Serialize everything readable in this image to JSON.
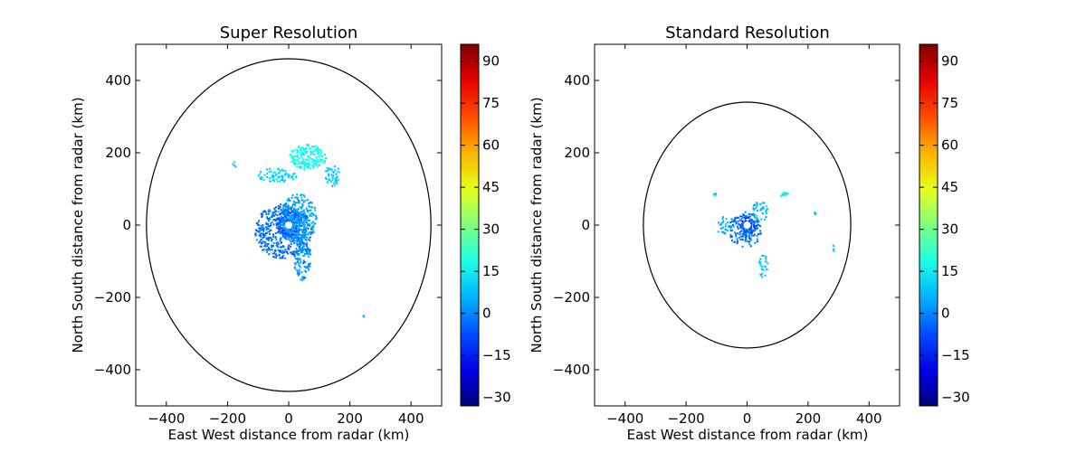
{
  "chart_data": [
    {
      "type": "heatmap",
      "title": "Super Resolution",
      "xlabel": "East West distance from radar (km)",
      "ylabel": "North South distance from radar (km)",
      "xlim": [
        -500,
        500
      ],
      "ylim": [
        -500,
        500
      ],
      "xticks": [
        -400,
        -200,
        0,
        200,
        400
      ],
      "yticks": [
        -400,
        -200,
        0,
        200,
        400
      ],
      "xtick_labels": [
        "−400",
        "−200",
        "0",
        "200",
        "400"
      ],
      "ytick_labels": [
        "−400",
        "−200",
        "0",
        "200",
        "400"
      ],
      "range_ring": {
        "center": [
          0,
          0
        ],
        "radius_x": 465,
        "radius_y": 460
      },
      "colorbar": {
        "min": -33,
        "max": 96,
        "ticks": [
          -30,
          -15,
          0,
          15,
          30,
          45,
          60,
          75,
          90
        ],
        "tick_labels": [
          "−30",
          "−15",
          "0",
          "15",
          "30",
          "45",
          "60",
          "75",
          "90"
        ],
        "colormap": "jet"
      },
      "echo_regions": [
        {
          "x": 0,
          "y": 10,
          "rx": 40,
          "ry": 40,
          "value": -10,
          "density": 0.85
        },
        {
          "x": -20,
          "y": -15,
          "rx": 95,
          "ry": 75,
          "value": -3,
          "density": 0.5
        },
        {
          "x": 30,
          "y": 20,
          "rx": 60,
          "ry": 70,
          "value": 4,
          "density": 0.45
        },
        {
          "x": 40,
          "y": -90,
          "rx": 30,
          "ry": 60,
          "value": 2,
          "density": 0.45
        },
        {
          "x": 60,
          "y": 190,
          "rx": 60,
          "ry": 35,
          "value": 17,
          "density": 0.6
        },
        {
          "x": -40,
          "y": 140,
          "rx": 65,
          "ry": 20,
          "value": 10,
          "density": 0.4
        },
        {
          "x": 140,
          "y": 140,
          "rx": 25,
          "ry": 30,
          "value": 9,
          "density": 0.45
        },
        {
          "x": -180,
          "y": 170,
          "rx": 6,
          "ry": 10,
          "value": 8,
          "density": 0.5
        },
        {
          "x": 240,
          "y": -250,
          "rx": 3,
          "ry": 3,
          "value": 8,
          "density": 0.6
        }
      ]
    },
    {
      "type": "heatmap",
      "title": "Standard Resolution",
      "xlabel": "East West distance from radar (km)",
      "ylabel": "North South distance from radar (km)",
      "xlim": [
        -500,
        500
      ],
      "ylim": [
        -500,
        500
      ],
      "xticks": [
        -400,
        -200,
        0,
        200,
        400
      ],
      "yticks": [
        -400,
        -200,
        0,
        200,
        400
      ],
      "xtick_labels": [
        "−400",
        "−200",
        "0",
        "200",
        "400"
      ],
      "ytick_labels": [
        "−400",
        "−200",
        "0",
        "200",
        "400"
      ],
      "range_ring": {
        "center": [
          0,
          0
        ],
        "radius_x": 340,
        "radius_y": 340
      },
      "colorbar": {
        "min": -33,
        "max": 96,
        "ticks": [
          -30,
          -15,
          0,
          15,
          30,
          45,
          60,
          75,
          90
        ],
        "tick_labels": [
          "−30",
          "−15",
          "0",
          "15",
          "30",
          "45",
          "60",
          "75",
          "90"
        ],
        "colormap": "jet"
      },
      "echo_regions": [
        {
          "x": 0,
          "y": 0,
          "rx": 25,
          "ry": 25,
          "value": -10,
          "density": 0.85
        },
        {
          "x": -10,
          "y": -10,
          "rx": 55,
          "ry": 50,
          "value": -2,
          "density": 0.45
        },
        {
          "x": -80,
          "y": 0,
          "rx": 25,
          "ry": 25,
          "value": 6,
          "density": 0.35
        },
        {
          "x": 40,
          "y": 40,
          "rx": 25,
          "ry": 30,
          "value": 6,
          "density": 0.4
        },
        {
          "x": 50,
          "y": -110,
          "rx": 15,
          "ry": 35,
          "value": 8,
          "density": 0.4
        },
        {
          "x": 120,
          "y": 85,
          "rx": 12,
          "ry": 8,
          "value": 12,
          "density": 0.8
        },
        {
          "x": -110,
          "y": 85,
          "rx": 8,
          "ry": 6,
          "value": 10,
          "density": 0.6
        },
        {
          "x": 220,
          "y": 35,
          "rx": 3,
          "ry": 3,
          "value": 8,
          "density": 0.6
        },
        {
          "x": 280,
          "y": -65,
          "rx": 3,
          "ry": 12,
          "value": 8,
          "density": 0.5
        }
      ]
    }
  ]
}
